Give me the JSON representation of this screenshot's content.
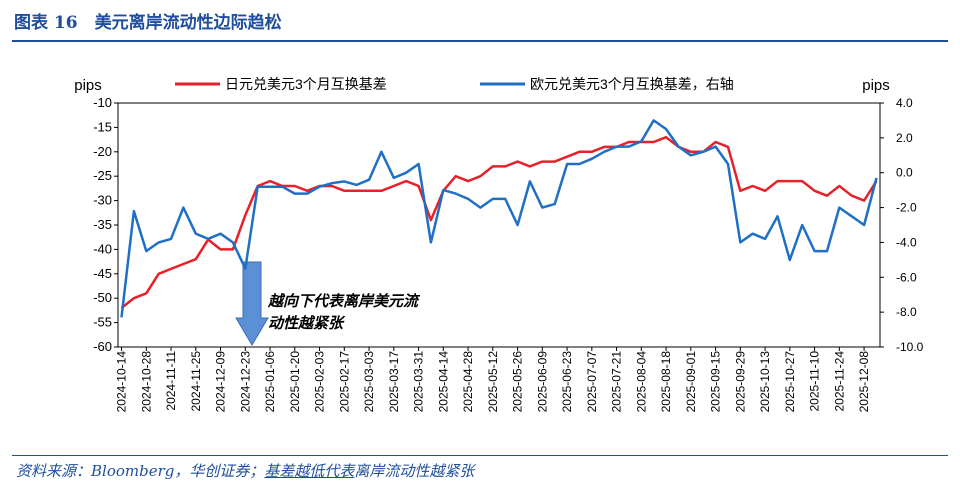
{
  "chart_data": {
    "type": "line",
    "title": "图表 16　美元离岸流动性边际趋松",
    "annotation": "越向下代表离岸美元流动性越紧张",
    "source": [
      "资料来源：Bloomberg，华创证券；",
      "基差越低代表",
      "离岸流动性越紧张"
    ],
    "y_label": "pips",
    "y2_label": "pips",
    "x": [
      "2024-10-14",
      "2024-10-21",
      "2024-10-28",
      "2024-11-04",
      "2024-11-11",
      "2024-11-18",
      "2024-11-25",
      "2024-12-02",
      "2024-12-09",
      "2024-12-16",
      "2024-12-23",
      "2024-12-30",
      "2025-01-06",
      "2025-01-13",
      "2025-01-20",
      "2025-01-27",
      "2025-02-03",
      "2025-02-10",
      "2025-02-17",
      "2025-02-24",
      "2025-03-03",
      "2025-03-10",
      "2025-03-17",
      "2025-03-24",
      "2025-03-31",
      "2025-04-07",
      "2025-04-14",
      "2025-04-21",
      "2025-04-28",
      "2025-05-05",
      "2025-05-12",
      "2025-05-19",
      "2025-05-26",
      "2025-06-02",
      "2025-06-09",
      "2025-06-16",
      "2025-06-23",
      "2025-06-30",
      "2025-07-07",
      "2025-07-14",
      "2025-07-21",
      "2025-07-28",
      "2025-08-04",
      "2025-08-11",
      "2025-08-18",
      "2025-08-25",
      "2025-09-01",
      "2025-09-08",
      "2025-09-15",
      "2025-09-22",
      "2025-09-29",
      "2025-10-06",
      "2025-10-13",
      "2025-10-20",
      "2025-10-27",
      "2025-11-03",
      "2025-11-10",
      "2025-11-17",
      "2025-11-24",
      "2025-12-01",
      "2025-12-08",
      "2025-12-15"
    ],
    "xlim": [
      "2024-10-12",
      "2025-12-17"
    ],
    "xticks": [
      "2024-10-14",
      "2024-10-28",
      "2024-11-11",
      "2024-11-25",
      "2024-12-09",
      "2024-12-23",
      "2025-01-06",
      "2025-01-20",
      "2025-02-03",
      "2025-02-17",
      "2025-03-03",
      "2025-03-17",
      "2025-03-31",
      "2025-04-14",
      "2025-04-28",
      "2025-05-12",
      "2025-05-26",
      "2025-06-09",
      "2025-06-23",
      "2025-07-07",
      "2025-07-21",
      "2025-08-04",
      "2025-08-18",
      "2025-09-01",
      "2025-09-15",
      "2025-09-29",
      "2025-10-13",
      "2025-10-27",
      "2025-11-10",
      "2025-11-24",
      "2025-12-08"
    ],
    "ylim": [
      -60,
      -10
    ],
    "yticks": [
      -10,
      -15,
      -20,
      -25,
      -30,
      -35,
      -40,
      -45,
      -50,
      -55,
      -60
    ],
    "y2lim": [
      -10,
      4
    ],
    "y2ticks": [
      {
        "value": 4,
        "label": "4.0"
      },
      {
        "value": 2,
        "label": "2.0"
      },
      {
        "value": 0,
        "label": "0.0"
      },
      {
        "value": -2,
        "label": "-2.0"
      },
      {
        "value": -4,
        "label": "-4.0"
      },
      {
        "value": -6,
        "label": "-6.0"
      },
      {
        "value": -8,
        "label": "-8.0"
      },
      {
        "value": -10,
        "label": "-10.0"
      }
    ],
    "series": [
      {
        "name": "日元兑美元3个月互换基差",
        "color": "#e8202a",
        "values": [
          -52,
          -50,
          -49,
          -45,
          -44,
          -43,
          -42,
          -38,
          -40,
          -40,
          -33,
          -27,
          -26,
          -27,
          -27,
          -28,
          -27,
          -27,
          -28,
          -28,
          -28,
          -28,
          -27,
          -26,
          -27,
          -34,
          -28,
          -25,
          -26,
          -25,
          -23,
          -23,
          -22,
          -23,
          -22,
          -22,
          -21,
          -20,
          -20,
          -19,
          -19,
          -18,
          -18,
          -18,
          -17,
          -19,
          -20,
          -20,
          -18,
          -19,
          -28,
          -27,
          -28,
          -26,
          -26,
          -26,
          -28,
          -29,
          -27,
          -29,
          -30,
          -26
        ]
      },
      {
        "name": "欧元兑美元3个月互换基差，右轴",
        "color": "#1f6fc5",
        "axis": "y2",
        "values": [
          -8.3,
          -2.2,
          -4.5,
          -4.0,
          -3.8,
          -2.0,
          -3.5,
          -3.8,
          -3.5,
          -4.0,
          -5.5,
          -0.8,
          -0.8,
          -0.8,
          -1.2,
          -1.2,
          -0.8,
          -0.6,
          -0.5,
          -0.7,
          -0.4,
          1.2,
          -0.3,
          0.0,
          0.5,
          -4.0,
          -1.0,
          -1.2,
          -1.5,
          -2.0,
          -1.5,
          -1.5,
          -3.0,
          -0.5,
          -2.0,
          -1.8,
          0.5,
          0.5,
          0.8,
          1.2,
          1.5,
          1.5,
          1.8,
          3.0,
          2.5,
          1.5,
          1.0,
          1.2,
          1.5,
          0.5,
          -4.0,
          -3.5,
          -3.8,
          -2.5,
          -5.0,
          -3.0,
          -4.5,
          -4.5,
          -2.0,
          -2.5,
          -3.0,
          -0.3
        ]
      }
    ]
  }
}
